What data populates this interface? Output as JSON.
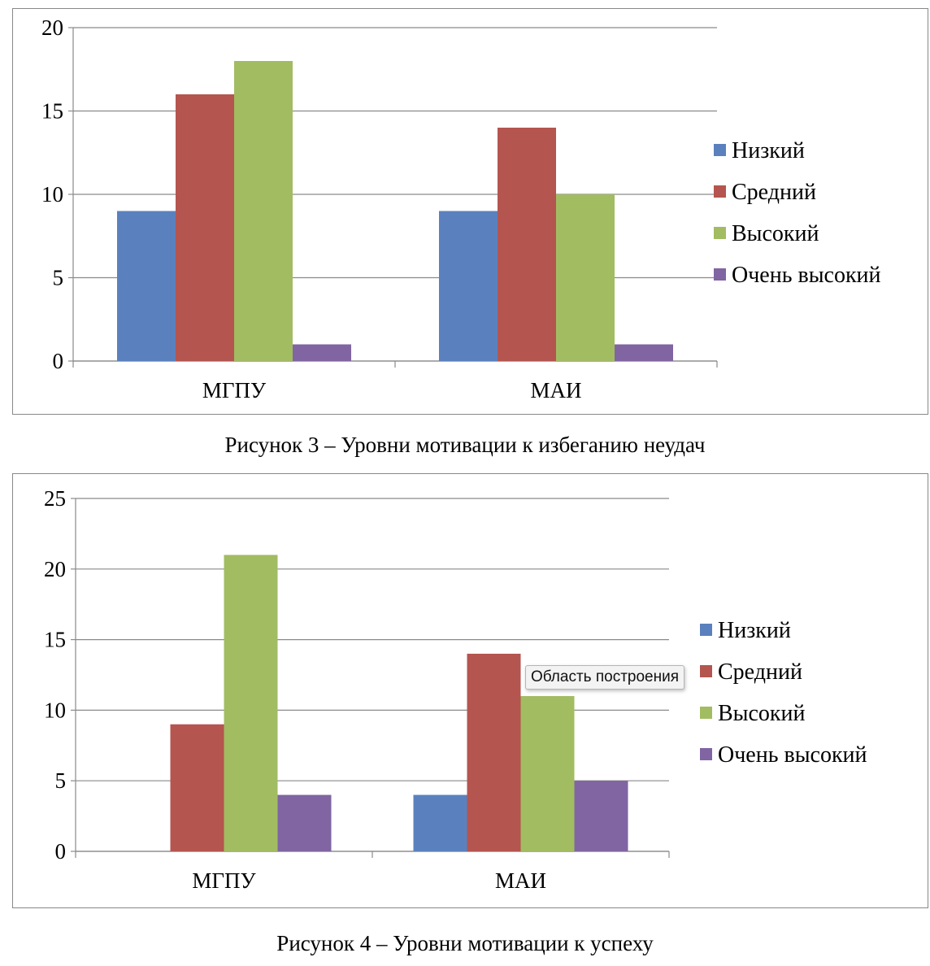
{
  "series_colors": [
    "#5a81be",
    "#b4554f",
    "#a2bc62",
    "#8065a2"
  ],
  "chart_data": [
    {
      "type": "bar",
      "categories": [
        "МГПУ",
        "МАИ"
      ],
      "series": [
        {
          "name": "Низкий",
          "values": [
            9,
            9
          ]
        },
        {
          "name": "Средний",
          "values": [
            16,
            14
          ]
        },
        {
          "name": "Высокий",
          "values": [
            18,
            10
          ]
        },
        {
          "name": "Очень высокий",
          "values": [
            1,
            1
          ]
        }
      ],
      "ylim": [
        0,
        20
      ],
      "yticks": [
        0,
        5,
        10,
        15,
        20
      ],
      "grid": true,
      "legend": "right",
      "caption": "Рисунок 3  – Уровни мотивации к избеганию неудач"
    },
    {
      "type": "bar",
      "categories": [
        "МГПУ",
        "МАИ"
      ],
      "series": [
        {
          "name": "Низкий",
          "values": [
            0,
            4
          ]
        },
        {
          "name": "Средний",
          "values": [
            9,
            14
          ]
        },
        {
          "name": "Высокий",
          "values": [
            21,
            11
          ]
        },
        {
          "name": "Очень высокий",
          "values": [
            4,
            5
          ]
        }
      ],
      "ylim": [
        0,
        25
      ],
      "yticks": [
        0,
        5,
        10,
        15,
        20,
        25
      ],
      "grid": true,
      "legend": "right",
      "caption": "Рисунок 4  – Уровни мотивации к успеху"
    }
  ],
  "tooltip": {
    "text": "Область построения"
  }
}
